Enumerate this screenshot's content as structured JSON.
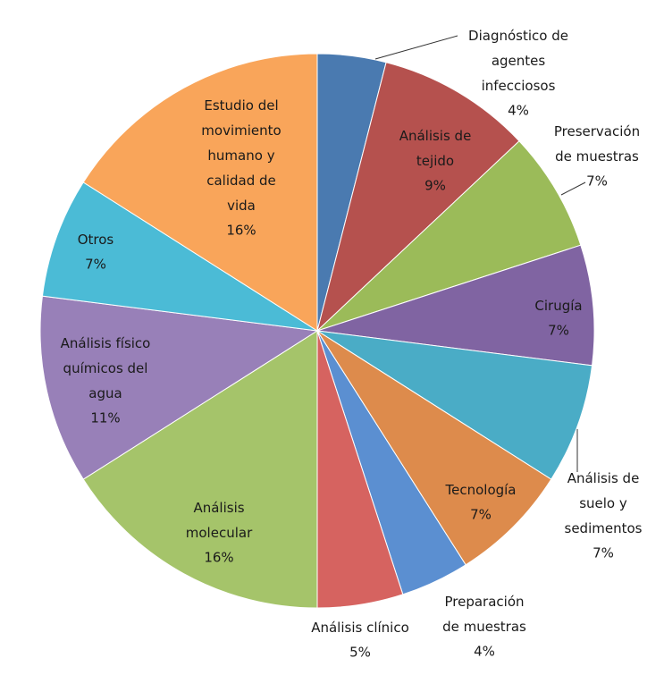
{
  "chart_data": {
    "type": "pie",
    "categories": [
      "Diagnóstico de\nagentes\ninfecciosos",
      "Análisis de\ntejido",
      "Preservación\nde muestras",
      "Cirugía",
      "Análisis de\nsuelo y\nsedimentos",
      "Tecnología",
      "Preparación\nde muestras",
      "Análisis clínico",
      "Análisis\nmolecular",
      "Análisis físico\nquímicos del\nagua",
      "Otros",
      "Estudio del\nmovimiento\nhumano y\ncalidad de\nvida"
    ],
    "values": [
      4,
      9,
      7,
      7,
      7,
      7,
      4,
      5,
      16,
      11,
      7,
      16
    ],
    "value_labels": [
      "4%",
      "9%",
      "7%",
      "7%",
      "7%",
      "7%",
      "4%",
      "5%",
      "16%",
      "11%",
      "7%",
      "16%"
    ],
    "colors": [
      "#4a7ab0",
      "#b5514e",
      "#9bbb59",
      "#8064a2",
      "#4aacc6",
      "#dd8b4c",
      "#5b8fd1",
      "#d66360",
      "#a5c46a",
      "#9880b8",
      "#4bbbd6",
      "#f9a55a"
    ]
  }
}
